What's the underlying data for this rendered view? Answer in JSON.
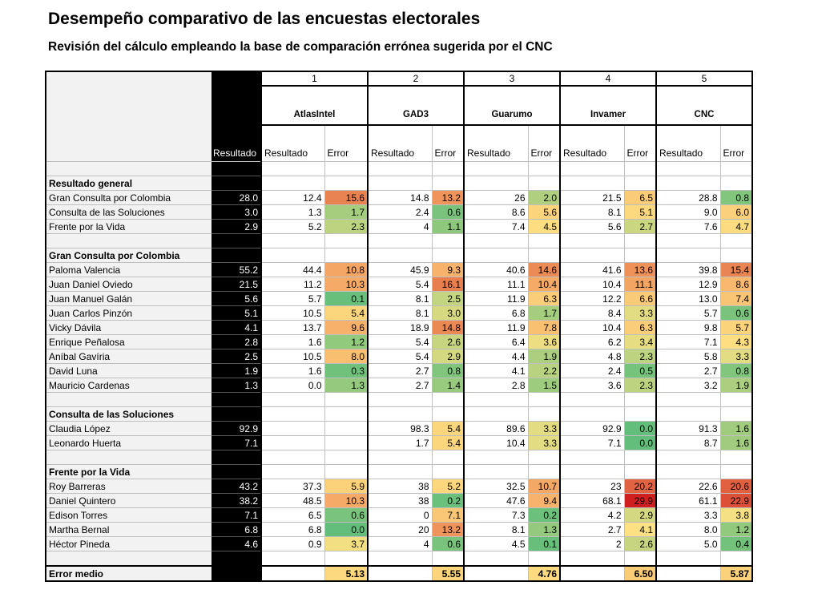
{
  "title": "Desempeño comparativo de las encuestas electorales",
  "subtitle": "Revisión del cálculo empleando la base de comparación errónea sugerida por el CNC",
  "color_scale": {
    "stops": [
      [
        0,
        "#63be7b"
      ],
      [
        4,
        "#fde283"
      ],
      [
        10,
        "#f6ad68"
      ],
      [
        16,
        "#e8804f"
      ],
      [
        30,
        "#cf1f1f"
      ]
    ]
  },
  "header": {
    "result_label": "Resultado",
    "sub_result": "Resultado",
    "sub_error": "Error",
    "pollsters": [
      {
        "number": "1",
        "name": "AtlasIntel"
      },
      {
        "number": "2",
        "name": "GAD3"
      },
      {
        "number": "3",
        "name": "Guarumo"
      },
      {
        "number": "4",
        "name": "Invamer"
      },
      {
        "number": "5",
        "name": "CNC"
      }
    ]
  },
  "rows": [
    {
      "type": "blank"
    },
    {
      "type": "section",
      "label": "Resultado general"
    },
    {
      "type": "data",
      "label": "Gran Consulta por Colombia",
      "result": "28.0",
      "polls": [
        [
          "12.4",
          "15.6"
        ],
        [
          "14.8",
          "13.2"
        ],
        [
          "26",
          "2.0"
        ],
        [
          "21.5",
          "6.5"
        ],
        [
          "28.8",
          "0.8"
        ]
      ]
    },
    {
      "type": "data",
      "label": "Consulta de las Soluciones",
      "result": "3.0",
      "polls": [
        [
          "1.3",
          "1.7"
        ],
        [
          "2.4",
          "0.6"
        ],
        [
          "8.6",
          "5.6"
        ],
        [
          "8.1",
          "5.1"
        ],
        [
          "9.0",
          "6.0"
        ]
      ]
    },
    {
      "type": "data",
      "label": "Frente por la Vida",
      "result": "2.9",
      "polls": [
        [
          "5.2",
          "2.3"
        ],
        [
          "4",
          "1.1"
        ],
        [
          "7.4",
          "4.5"
        ],
        [
          "5.6",
          "2.7"
        ],
        [
          "7.6",
          "4.7"
        ]
      ]
    },
    {
      "type": "blank"
    },
    {
      "type": "section",
      "label": "Gran Consulta por Colombia"
    },
    {
      "type": "data",
      "label": "Paloma Valencia",
      "result": "55.2",
      "polls": [
        [
          "44.4",
          "10.8"
        ],
        [
          "45.9",
          "9.3"
        ],
        [
          "40.6",
          "14.6"
        ],
        [
          "41.6",
          "13.6"
        ],
        [
          "39.8",
          "15.4"
        ]
      ]
    },
    {
      "type": "data",
      "label": "Juan Daniel Oviedo",
      "result": "21.5",
      "polls": [
        [
          "11.2",
          "10.3"
        ],
        [
          "5.4",
          "16.1"
        ],
        [
          "11.1",
          "10.4"
        ],
        [
          "10.4",
          "11.1"
        ],
        [
          "12.9",
          "8.6"
        ]
      ]
    },
    {
      "type": "data",
      "label": "Juan Manuel Galán",
      "result": "5.6",
      "polls": [
        [
          "5.7",
          "0.1"
        ],
        [
          "8.1",
          "2.5"
        ],
        [
          "11.9",
          "6.3"
        ],
        [
          "12.2",
          "6.6"
        ],
        [
          "13.0",
          "7.4"
        ]
      ]
    },
    {
      "type": "data",
      "label": "Juan Carlos Pinzón",
      "result": "5.1",
      "polls": [
        [
          "10.5",
          "5.4"
        ],
        [
          "8.1",
          "3.0"
        ],
        [
          "6.8",
          "1.7"
        ],
        [
          "8.4",
          "3.3"
        ],
        [
          "5.7",
          "0.6"
        ]
      ]
    },
    {
      "type": "data",
      "label": "Vicky Dávila",
      "result": "4.1",
      "polls": [
        [
          "13.7",
          "9.6"
        ],
        [
          "18.9",
          "14.8"
        ],
        [
          "11.9",
          "7.8"
        ],
        [
          "10.4",
          "6.3"
        ],
        [
          "9.8",
          "5.7"
        ]
      ]
    },
    {
      "type": "data",
      "label": "Enrique Peñalosa",
      "result": "2.8",
      "polls": [
        [
          "1.6",
          "1.2"
        ],
        [
          "5.4",
          "2.6"
        ],
        [
          "6.4",
          "3.6"
        ],
        [
          "6.2",
          "3.4"
        ],
        [
          "7.1",
          "4.3"
        ]
      ]
    },
    {
      "type": "data",
      "label": "Aníbal Gavíria",
      "result": "2.5",
      "polls": [
        [
          "10.5",
          "8.0"
        ],
        [
          "5.4",
          "2.9"
        ],
        [
          "4.4",
          "1.9"
        ],
        [
          "4.8",
          "2.3"
        ],
        [
          "5.8",
          "3.3"
        ]
      ]
    },
    {
      "type": "data",
      "label": "David Luna",
      "result": "1.9",
      "polls": [
        [
          "1.6",
          "0.3"
        ],
        [
          "2.7",
          "0.8"
        ],
        [
          "4.1",
          "2.2"
        ],
        [
          "2.4",
          "0.5"
        ],
        [
          "2.7",
          "0.8"
        ]
      ]
    },
    {
      "type": "data",
      "label": "Mauricio Cardenas",
      "result": "1.3",
      "polls": [
        [
          "0.0",
          "1.3"
        ],
        [
          "2.7",
          "1.4"
        ],
        [
          "2.8",
          "1.5"
        ],
        [
          "3.6",
          "2.3"
        ],
        [
          "3.2",
          "1.9"
        ]
      ]
    },
    {
      "type": "blank"
    },
    {
      "type": "section",
      "label": "Consulta de las Soluciones"
    },
    {
      "type": "data",
      "label": "Claudia López",
      "result": "92.9",
      "polls": [
        [
          "",
          ""
        ],
        [
          "98.3",
          "5.4"
        ],
        [
          "89.6",
          "3.3"
        ],
        [
          "92.9",
          "0.0"
        ],
        [
          "91.3",
          "1.6"
        ]
      ]
    },
    {
      "type": "data",
      "label": "Leonardo Huerta",
      "result": "7.1",
      "polls": [
        [
          "",
          ""
        ],
        [
          "1.7",
          "5.4"
        ],
        [
          "10.4",
          "3.3"
        ],
        [
          "7.1",
          "0.0"
        ],
        [
          "8.7",
          "1.6"
        ]
      ]
    },
    {
      "type": "blank"
    },
    {
      "type": "section",
      "label": "Frente por la Vida"
    },
    {
      "type": "data",
      "label": "Roy Barreras",
      "result": "43.2",
      "polls": [
        [
          "37.3",
          "5.9"
        ],
        [
          "38",
          "5.2"
        ],
        [
          "32.5",
          "10.7"
        ],
        [
          "23",
          "20.2"
        ],
        [
          "22.6",
          "20.6"
        ]
      ]
    },
    {
      "type": "data",
      "label": "Daniel Quintero",
      "result": "38.2",
      "polls": [
        [
          "48.5",
          "10.3"
        ],
        [
          "38",
          "0.2"
        ],
        [
          "47.6",
          "9.4"
        ],
        [
          "68.1",
          "29.9"
        ],
        [
          "61.1",
          "22.9"
        ]
      ]
    },
    {
      "type": "data",
      "label": "Edison Torres",
      "result": "7.1",
      "polls": [
        [
          "6.5",
          "0.6"
        ],
        [
          "0",
          "7.1"
        ],
        [
          "7.3",
          "0.2"
        ],
        [
          "4.2",
          "2.9"
        ],
        [
          "3.3",
          "3.8"
        ]
      ]
    },
    {
      "type": "data",
      "label": "Martha Bernal",
      "result": "6.8",
      "polls": [
        [
          "6.8",
          "0.0"
        ],
        [
          "20",
          "13.2"
        ],
        [
          "8.1",
          "1.3"
        ],
        [
          "2.7",
          "4.1"
        ],
        [
          "8.0",
          "1.2"
        ]
      ]
    },
    {
      "type": "data",
      "label": "Héctor Pineda",
      "result": "4.6",
      "polls": [
        [
          "0.9",
          "3.7"
        ],
        [
          "4",
          "0.6"
        ],
        [
          "4.5",
          "0.1"
        ],
        [
          "2",
          "2.6"
        ],
        [
          "5.0",
          "0.4"
        ]
      ]
    },
    {
      "type": "blank"
    },
    {
      "type": "mean",
      "label": "Error medio",
      "result": "",
      "polls": [
        [
          "",
          "5.13"
        ],
        [
          "",
          "5.55"
        ],
        [
          "",
          "4.76"
        ],
        [
          "",
          "6.50"
        ],
        [
          "",
          "5.87"
        ]
      ]
    }
  ]
}
